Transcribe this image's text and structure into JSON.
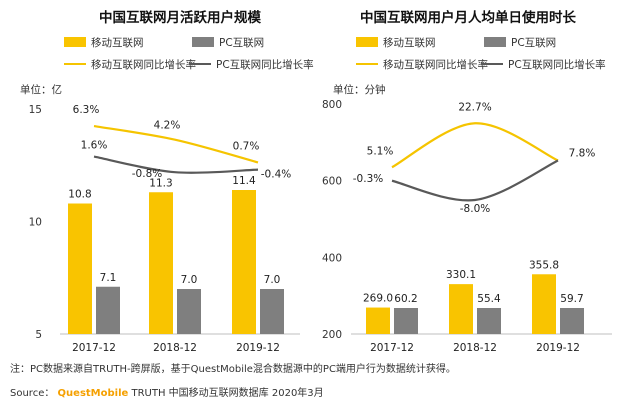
{
  "colors": {
    "mobile": "#f9c400",
    "pc": "#7f7f7f",
    "mobile_line": "#f5c400",
    "pc_line": "#595959",
    "brand": "#f5a000"
  },
  "chart_data": [
    {
      "type": "bar",
      "title": "中国互联网月活跃用户规模",
      "unit_label": "单位：亿",
      "categories": [
        "2017-12",
        "2018-12",
        "2019-12"
      ],
      "legend": [
        "移动互联网",
        "PC互联网",
        "移动互联网同比增长率",
        "PC互联网同比增长率"
      ],
      "y_ticks": [
        "15",
        "10",
        "5"
      ],
      "ylim": [
        5,
        15
      ],
      "series": [
        {
          "name": "移动互联网",
          "kind": "bar",
          "values": [
            10.8,
            11.3,
            11.4
          ],
          "labels": [
            "10.8",
            "11.3",
            "11.4"
          ]
        },
        {
          "name": "PC互联网",
          "kind": "bar",
          "values": [
            7.1,
            7.0,
            7.0
          ],
          "labels": [
            "7.1",
            "7.0",
            "7.0"
          ]
        },
        {
          "name": "移动互联网同比增长率",
          "kind": "line",
          "values": [
            6.3,
            4.2,
            0.7
          ],
          "labels": [
            "6.3%",
            "4.2%",
            "0.7%"
          ]
        },
        {
          "name": "PC互联网同比增长率",
          "kind": "line",
          "values": [
            1.6,
            -0.8,
            -0.4
          ],
          "labels": [
            "1.6%",
            "-0.8%",
            "-0.4%"
          ]
        }
      ]
    },
    {
      "type": "bar",
      "title": "中国互联网用户月人均单日使用时长",
      "unit_label": "单位：分钟",
      "categories": [
        "2017-12",
        "2018-12",
        "2019-12"
      ],
      "legend": [
        "移动互联网",
        "PC互联网",
        "移动互联网同比增长率",
        "PC互联网同比增长率"
      ],
      "y_ticks": [
        "800",
        "600",
        "400",
        "200"
      ],
      "ylim": [
        200,
        800
      ],
      "series": [
        {
          "name": "移动互联网",
          "kind": "bar",
          "values": [
            269.0,
            330.1,
            355.8
          ],
          "labels": [
            "269.0",
            "330.1",
            "355.8"
          ]
        },
        {
          "name": "PC互联网",
          "kind": "bar",
          "values": [
            60.2,
            55.4,
            59.7
          ],
          "labels": [
            "60.2",
            "55.4",
            "59.7"
          ]
        },
        {
          "name": "移动互联网同比增长率",
          "kind": "line",
          "values": [
            5.1,
            22.7,
            7.8
          ],
          "labels": [
            "5.1%",
            "22.7%",
            "7.8%"
          ]
        },
        {
          "name": "PC互联网同比增长率",
          "kind": "line",
          "values": [
            -0.3,
            -8.0,
            7.8
          ],
          "labels": [
            "-0.3%",
            "-8.0%",
            ""
          ]
        }
      ]
    }
  ],
  "footer": {
    "note": "注：PC数据来源自TRUTH-跨屏版，基于QuestMobile混合数据源中的PC端用户行为数据统计获得。",
    "source_prefix": "Source：",
    "source_brand": "QuestMobile",
    "source_text": "TRUTH 中国移动互联网数据库 2020年3月"
  }
}
